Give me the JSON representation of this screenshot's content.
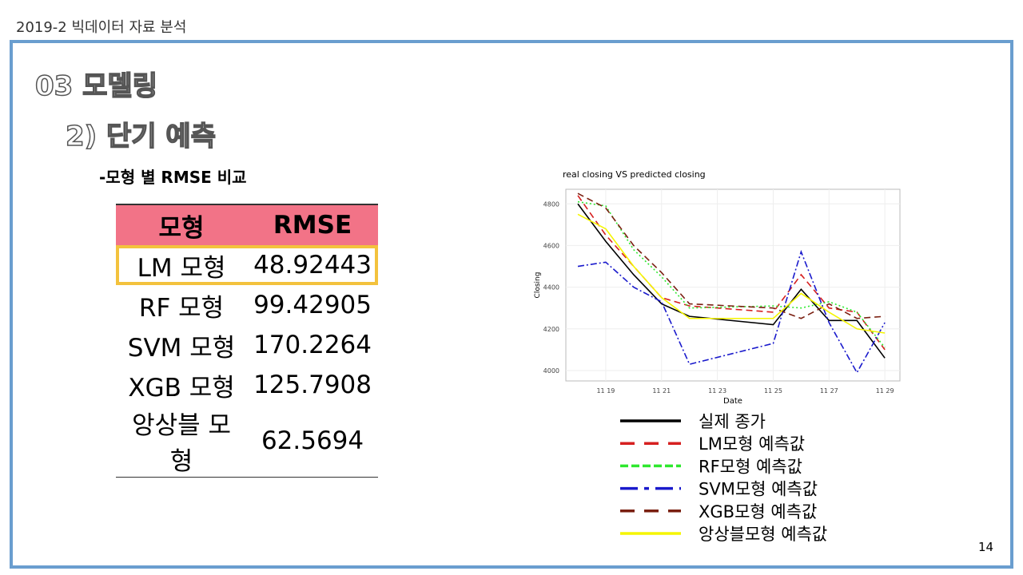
{
  "header": {
    "course": "2019-2 빅데이터 자료 분석",
    "section": "03 모델링",
    "subsection": "2) 단기 예측",
    "caption": "-모형 별 RMSE 비교",
    "page": "14"
  },
  "table": {
    "columns": [
      "모형",
      "RMSE"
    ],
    "rows": [
      [
        "LM 모형",
        48.92443
      ],
      [
        "RF 모형",
        99.42905
      ],
      [
        "SVM 모형",
        170.2264
      ],
      [
        "XGB 모형",
        125.7908
      ],
      [
        "앙상블 모형",
        62.5694
      ]
    ]
  },
  "chart_data": {
    "type": "line",
    "title": "real closing VS predicted closing",
    "x_label": "Date",
    "y_label": "Closing",
    "x": [
      18,
      19,
      20,
      21,
      22,
      25,
      26,
      27,
      28,
      29
    ],
    "xlim": [
      17.57,
      29.54
    ],
    "xticks": [
      {
        "value": 19,
        "label": "11 19"
      },
      {
        "value": 21,
        "label": "11 21"
      },
      {
        "value": 23,
        "label": "11 23"
      },
      {
        "value": 25,
        "label": "11 25"
      },
      {
        "value": 27,
        "label": "11 27"
      },
      {
        "value": 29,
        "label": "11 29"
      }
    ],
    "ylim": [
      3950,
      4870
    ],
    "yticks": [
      4000,
      4200,
      4400,
      4600,
      4800
    ],
    "grid": true,
    "series": [
      {
        "name": "실제 종가",
        "color": "#000000",
        "dash": "solid",
        "values": [
          4800,
          4620,
          4460,
          4320,
          4260,
          4220,
          4390,
          4240,
          4240,
          4060
        ]
      },
      {
        "name": "LM모형 예측값",
        "color": "#d62020",
        "dash": "dash",
        "values": [
          4840,
          4650,
          4500,
          4350,
          4310,
          4280,
          4460,
          4300,
          4280,
          4100
        ]
      },
      {
        "name": "RF모형 예측값",
        "color": "#2ee82e",
        "dash": "dot",
        "values": [
          4810,
          4790,
          4580,
          4450,
          4300,
          4310,
          4300,
          4330,
          4280,
          4110
        ]
      },
      {
        "name": "SVM모형 예측값",
        "color": "#1a1acc",
        "dash": "dashdot",
        "values": [
          4500,
          4520,
          4400,
          4330,
          4030,
          4130,
          4570,
          4230,
          3990,
          4230
        ]
      },
      {
        "name": "XGB모형 예측값",
        "color": "#7a1f10",
        "dash": "dash",
        "values": [
          4850,
          4780,
          4600,
          4470,
          4320,
          4300,
          4250,
          4320,
          4250,
          4260
        ]
      },
      {
        "name": "앙상블모형 예측값",
        "color": "#f5f500",
        "dash": "solid",
        "values": [
          4750,
          4680,
          4500,
          4350,
          4250,
          4250,
          4370,
          4280,
          4200,
          4180
        ]
      }
    ]
  }
}
